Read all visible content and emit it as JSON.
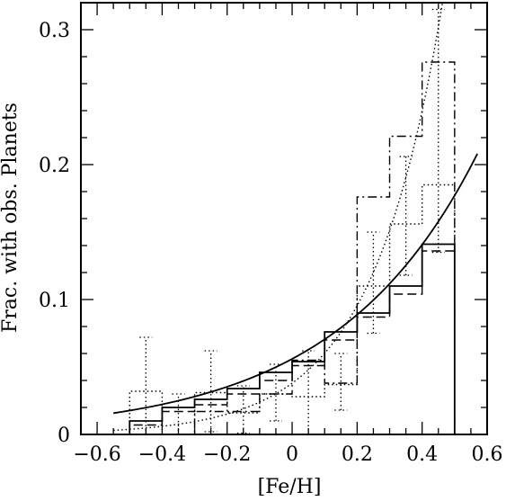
{
  "chart_data": {
    "type": "step-histogram",
    "title": "",
    "xlabel": "[Fe/H]",
    "ylabel": "Frac. with obs. Planets",
    "xlim": [
      -0.65,
      0.6
    ],
    "ylim": [
      0,
      0.32
    ],
    "grid": false,
    "legend": "none",
    "x_ticks": [
      {
        "value": -0.6,
        "label": "−0.6"
      },
      {
        "value": -0.4,
        "label": "−0.4"
      },
      {
        "value": -0.2,
        "label": "−0.2"
      },
      {
        "value": 0.0,
        "label": "0"
      },
      {
        "value": 0.2,
        "label": "0.2"
      },
      {
        "value": 0.4,
        "label": "0.4"
      },
      {
        "value": 0.6,
        "label": "0.6"
      }
    ],
    "y_ticks": [
      {
        "value": 0.0,
        "label": "0"
      },
      {
        "value": 0.1,
        "label": "0.1"
      },
      {
        "value": 0.2,
        "label": "0.2"
      },
      {
        "value": 0.3,
        "label": "0.3"
      }
    ],
    "bin_edges": [
      -0.5,
      -0.4,
      -0.3,
      -0.2,
      -0.1,
      0.0,
      0.1,
      0.2,
      0.3,
      0.4,
      0.5
    ],
    "series": [
      {
        "style": "solid",
        "values": [
          0.01,
          0.02,
          0.026,
          0.034,
          0.046,
          0.054,
          0.076,
          0.09,
          0.11,
          0.141
        ]
      },
      {
        "style": "dashed",
        "values": [
          0.007,
          0.017,
          0.022,
          0.03,
          0.04,
          0.051,
          0.07,
          0.087,
          0.104,
          0.136
        ]
      },
      {
        "style": "dash-dot",
        "values": [
          0.0,
          0.0,
          0.017,
          0.017,
          0.03,
          0.055,
          0.038,
          0.176,
          0.221,
          0.276
        ]
      },
      {
        "style": "dotted",
        "values": [
          0.032,
          0.0,
          0.031,
          0.016,
          0.03,
          0.028,
          0.037,
          0.11,
          0.156,
          0.185
        ]
      }
    ],
    "error_bars": {
      "style": "dotted",
      "x": [
        -0.45,
        -0.35,
        -0.25,
        -0.15,
        -0.05,
        0.05,
        0.15,
        0.25,
        0.35,
        0.45
      ],
      "low": [
        0.0,
        0.0,
        0.002,
        0.001,
        0.01,
        0.0,
        0.018,
        0.075,
        0.118,
        0.135
      ],
      "high": [
        0.072,
        0.03,
        0.062,
        0.036,
        0.052,
        0.062,
        0.06,
        0.15,
        0.206,
        0.315
      ]
    },
    "curves": [
      {
        "style": "solid",
        "x_range": [
          -0.55,
          0.57
        ],
        "y_at_x0": 0.056,
        "slope_dex": 1.0
      },
      {
        "style": "dotted",
        "x_range": [
          -0.55,
          0.57
        ],
        "y_at_x0": 0.038,
        "slope_dex": 2.0
      }
    ]
  }
}
